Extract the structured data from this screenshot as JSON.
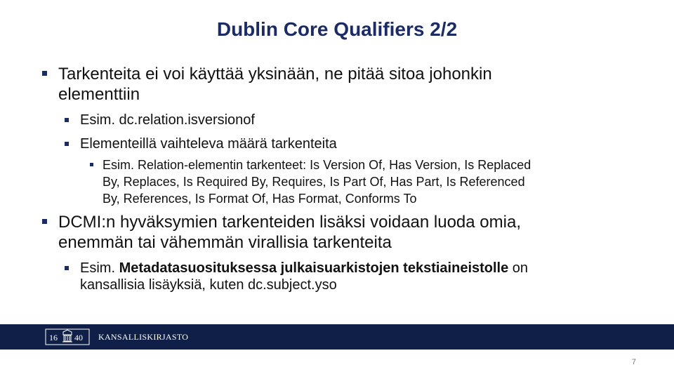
{
  "slide": {
    "title": "Dublin Core Qualifiers 2/2",
    "page_number": "7"
  },
  "content": {
    "b1": {
      "line1": "Tarkenteita ei voi käyttää yksinään, ne pitää sitoa johonkin",
      "line2": "elementtiin"
    },
    "b1_1": "Esim. dc.relation.isversionof",
    "b1_2": "Elementeillä vaihteleva määrä tarkenteita",
    "b1_2_1": {
      "line1": "Esim. Relation-elementin tarkenteet: Is Version Of, Has Version, Is Replaced",
      "line2": "By, Replaces, Is Required By, Requires, Is Part Of, Has Part, Is Referenced",
      "line3": "By, References, Is Format Of, Has Format, Conforms To"
    },
    "b2": {
      "line1": "DCMI:n hyväksymien tarkenteiden lisäksi voidaan luoda omia,",
      "line2": "enemmän tai vähemmän virallisia tarkenteita"
    },
    "b2_1": {
      "prefix": "Esim. ",
      "bold": "Metadatasuosituksessa julkaisuarkistojen tekstiaineistolle",
      "suffix": " on",
      "line2": "kansallisia lisäyksiä, kuten dc.subject.yso"
    }
  },
  "footer": {
    "logo_year_left": "16",
    "logo_year_right": "40",
    "organization": "KANSALLISKIRJASTO"
  },
  "colors": {
    "title": "#1b2b66",
    "bullet": "#1b2b66",
    "footer_band": "#0f1f47"
  }
}
